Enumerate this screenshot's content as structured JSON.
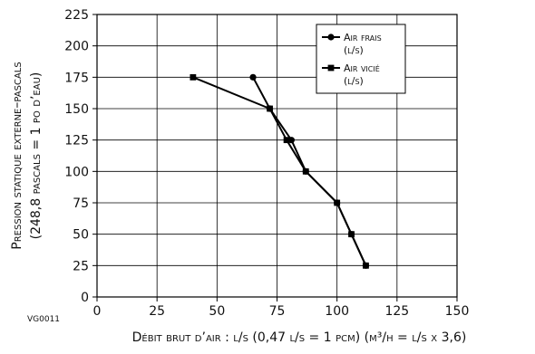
{
  "chart_data": {
    "type": "line",
    "xlabel": "Débit brut d’air : l/s (0,47 l/s = 1 pcm) (m³/h = l/s x 3,6)",
    "ylabel": [
      "Pression statique externe–pascals",
      "(248,8 pascals = 1 po d’eau)"
    ],
    "code": "VG0011",
    "xlim": [
      0,
      150
    ],
    "ylim": [
      0,
      225
    ],
    "xticks": [
      0,
      25,
      50,
      75,
      100,
      125,
      150
    ],
    "yticks": [
      0,
      25,
      50,
      75,
      100,
      125,
      150,
      175,
      200,
      225
    ],
    "grid": true,
    "legend_position": "top-right",
    "series": [
      {
        "name": [
          "Air frais",
          "(l/s)"
        ],
        "marker": "circle",
        "color": "#000000",
        "x": [
          112,
          106,
          100,
          87,
          81,
          72,
          65
        ],
        "y": [
          25,
          50,
          75,
          100,
          125,
          150,
          175
        ]
      },
      {
        "name": [
          "Air vicié",
          "(l/s)"
        ],
        "marker": "square",
        "color": "#000000",
        "x": [
          112,
          106,
          100,
          87,
          79,
          72,
          40
        ],
        "y": [
          25,
          50,
          75,
          100,
          125,
          150,
          175
        ]
      }
    ]
  }
}
